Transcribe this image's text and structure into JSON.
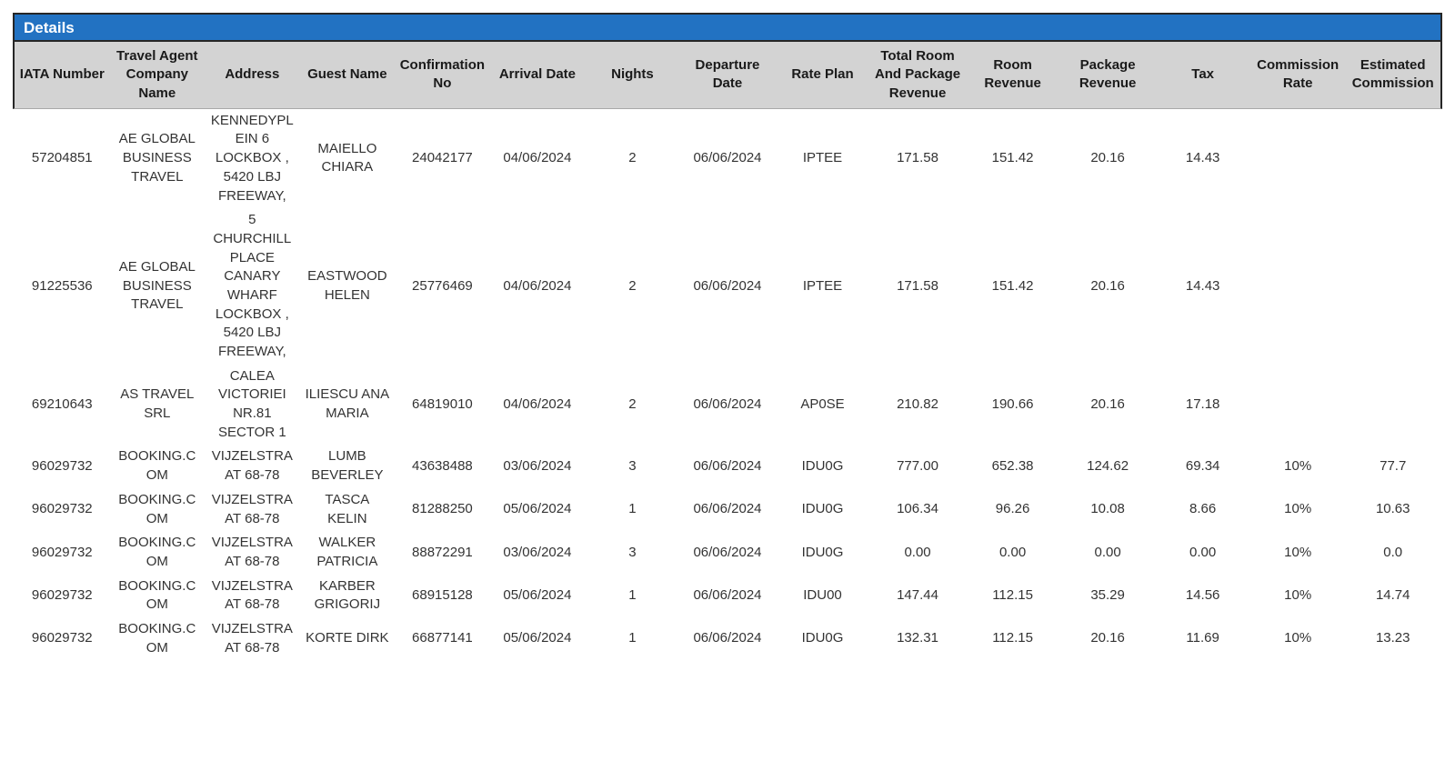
{
  "panel": {
    "title": "Details"
  },
  "colors": {
    "header_bar": "#2272c2",
    "header_bg": "#d3d3d3",
    "frame_border": "#262626"
  },
  "table": {
    "columns": [
      {
        "key": "iata",
        "label": "IATA Number"
      },
      {
        "key": "agent",
        "label": "Travel Agent Company Name"
      },
      {
        "key": "address",
        "label": "Address"
      },
      {
        "key": "guest",
        "label": "Guest Name"
      },
      {
        "key": "confirmation",
        "label": "Confirmation No"
      },
      {
        "key": "arrival",
        "label": "Arrival Date"
      },
      {
        "key": "nights",
        "label": "Nights"
      },
      {
        "key": "departure",
        "label": "Departure Date"
      },
      {
        "key": "rate_plan",
        "label": "Rate Plan"
      },
      {
        "key": "total_revenue",
        "label": "Total Room And Package Revenue"
      },
      {
        "key": "room_revenue",
        "label": "Room Revenue"
      },
      {
        "key": "package_revenue",
        "label": "Package Revenue"
      },
      {
        "key": "tax",
        "label": "Tax"
      },
      {
        "key": "commission_rate",
        "label": "Commission Rate"
      },
      {
        "key": "estimated_commission",
        "label": "Estimated Commission"
      }
    ],
    "rows": [
      {
        "iata": "57204851",
        "agent": "AE GLOBAL BUSINESS TRAVEL",
        "address": "KENNEDYPLEIN 6 LOCKBOX , 5420 LBJ FREEWAY,",
        "guest": "MAIELLO CHIARA",
        "confirmation": "24042177",
        "arrival": "04/06/2024",
        "nights": "2",
        "departure": "06/06/2024",
        "rate_plan": "IPTEE",
        "total_revenue": "171.58",
        "room_revenue": "151.42",
        "package_revenue": "20.16",
        "tax": "14.43",
        "commission_rate": "",
        "estimated_commission": ""
      },
      {
        "iata": "91225536",
        "agent": "AE GLOBAL BUSINESS TRAVEL",
        "address": "5 CHURCHILL PLACE CANARY WHARF LOCKBOX , 5420 LBJ FREEWAY,",
        "guest": "EASTWOOD HELEN",
        "confirmation": "25776469",
        "arrival": "04/06/2024",
        "nights": "2",
        "departure": "06/06/2024",
        "rate_plan": "IPTEE",
        "total_revenue": "171.58",
        "room_revenue": "151.42",
        "package_revenue": "20.16",
        "tax": "14.43",
        "commission_rate": "",
        "estimated_commission": ""
      },
      {
        "iata": "69210643",
        "agent": "AS TRAVEL SRL",
        "address": "CALEA VICTORIEI NR.81 SECTOR 1",
        "guest": "ILIESCU ANA MARIA",
        "confirmation": "64819010",
        "arrival": "04/06/2024",
        "nights": "2",
        "departure": "06/06/2024",
        "rate_plan": "AP0SE",
        "total_revenue": "210.82",
        "room_revenue": "190.66",
        "package_revenue": "20.16",
        "tax": "17.18",
        "commission_rate": "",
        "estimated_commission": ""
      },
      {
        "iata": "96029732",
        "agent": "BOOKING.COM",
        "address": "VIJZELSTRAAT 68-78",
        "guest": "LUMB BEVERLEY",
        "confirmation": "43638488",
        "arrival": "03/06/2024",
        "nights": "3",
        "departure": "06/06/2024",
        "rate_plan": "IDU0G",
        "total_revenue": "777.00",
        "room_revenue": "652.38",
        "package_revenue": "124.62",
        "tax": "69.34",
        "commission_rate": "10%",
        "estimated_commission": "77.7"
      },
      {
        "iata": "96029732",
        "agent": "BOOKING.COM",
        "address": "VIJZELSTRAAT 68-78",
        "guest": "TASCA KELIN",
        "confirmation": "81288250",
        "arrival": "05/06/2024",
        "nights": "1",
        "departure": "06/06/2024",
        "rate_plan": "IDU0G",
        "total_revenue": "106.34",
        "room_revenue": "96.26",
        "package_revenue": "10.08",
        "tax": "8.66",
        "commission_rate": "10%",
        "estimated_commission": "10.63"
      },
      {
        "iata": "96029732",
        "agent": "BOOKING.COM",
        "address": "VIJZELSTRAAT 68-78",
        "guest": "WALKER PATRICIA",
        "confirmation": "88872291",
        "arrival": "03/06/2024",
        "nights": "3",
        "departure": "06/06/2024",
        "rate_plan": "IDU0G",
        "total_revenue": "0.00",
        "room_revenue": "0.00",
        "package_revenue": "0.00",
        "tax": "0.00",
        "commission_rate": "10%",
        "estimated_commission": "0.0"
      },
      {
        "iata": "96029732",
        "agent": "BOOKING.COM",
        "address": "VIJZELSTRAAT 68-78",
        "guest": "KARBER GRIGORIJ",
        "confirmation": "68915128",
        "arrival": "05/06/2024",
        "nights": "1",
        "departure": "06/06/2024",
        "rate_plan": "IDU00",
        "total_revenue": "147.44",
        "room_revenue": "112.15",
        "package_revenue": "35.29",
        "tax": "14.56",
        "commission_rate": "10%",
        "estimated_commission": "14.74"
      },
      {
        "iata": "96029732",
        "agent": "BOOKING.COM",
        "address": "VIJZELSTRAAT 68-78",
        "guest": "KORTE DIRK",
        "confirmation": "66877141",
        "arrival": "05/06/2024",
        "nights": "1",
        "departure": "06/06/2024",
        "rate_plan": "IDU0G",
        "total_revenue": "132.31",
        "room_revenue": "112.15",
        "package_revenue": "20.16",
        "tax": "11.69",
        "commission_rate": "10%",
        "estimated_commission": "13.23"
      }
    ]
  }
}
